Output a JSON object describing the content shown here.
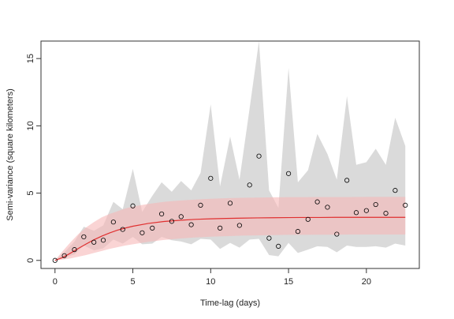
{
  "chart_data": {
    "type": "scatter",
    "title": "",
    "xlabel": "Time-lag (days)",
    "ylabel": "Semi-variance (square kilometers)",
    "xlim": [
      -0.9,
      23.4
    ],
    "ylim": [
      -0.6,
      16.3
    ],
    "xticks": [
      0,
      5,
      10,
      15,
      20
    ],
    "yticks": [
      0,
      5,
      10,
      15
    ],
    "grid": false,
    "colors": {
      "points": "#000000",
      "fit_line": "#e03030",
      "fit_band": "#f7b7b7",
      "empirical_band": "#d4d4d4"
    },
    "points": {
      "x": [
        0.0,
        0.6,
        1.25,
        1.85,
        2.5,
        3.1,
        3.75,
        4.35,
        5.0,
        5.6,
        6.25,
        6.85,
        7.5,
        8.1,
        8.75,
        9.35,
        10.0,
        10.6,
        11.25,
        11.85,
        12.5,
        13.1,
        13.75,
        14.35,
        15.0,
        15.6,
        16.25,
        16.85,
        17.5,
        18.1,
        18.75,
        19.35,
        20.0,
        20.6,
        21.25,
        21.85,
        22.5
      ],
      "y": [
        0.0,
        0.35,
        0.8,
        1.75,
        1.35,
        1.5,
        2.85,
        2.3,
        4.05,
        2.05,
        2.4,
        3.45,
        2.9,
        3.25,
        2.65,
        4.1,
        6.1,
        2.4,
        4.25,
        2.6,
        5.6,
        7.75,
        1.65,
        1.05,
        6.45,
        2.15,
        3.05,
        4.35,
        3.95,
        1.95,
        5.95,
        3.55,
        3.7,
        4.15,
        3.5,
        5.2,
        4.1
      ]
    },
    "fit_curve": {
      "sill": 3.2,
      "x": [
        0,
        0.5,
        1,
        1.5,
        2,
        2.5,
        3,
        3.5,
        4,
        4.5,
        5,
        6,
        7,
        8,
        9,
        10,
        11,
        12,
        13,
        14,
        15,
        16,
        17,
        18,
        19,
        20,
        21,
        22,
        22.5
      ],
      "y": [
        0,
        0.22,
        0.54,
        0.89,
        1.22,
        1.53,
        1.8,
        2.04,
        2.24,
        2.4,
        2.54,
        2.75,
        2.89,
        2.98,
        3.05,
        3.09,
        3.12,
        3.14,
        3.16,
        3.17,
        3.18,
        3.19,
        3.19,
        3.2,
        3.2,
        3.2,
        3.2,
        3.2,
        3.2
      ]
    },
    "fit_band": {
      "x": [
        0,
        0.5,
        1,
        1.5,
        2,
        2.5,
        3,
        3.5,
        4,
        4.5,
        5,
        6,
        7,
        8,
        9,
        10,
        11,
        12,
        13,
        14,
        15,
        16,
        17,
        18,
        19,
        20,
        21,
        22,
        22.5
      ],
      "lower": [
        0,
        0.06,
        0.15,
        0.27,
        0.4,
        0.55,
        0.7,
        0.85,
        0.98,
        1.1,
        1.2,
        1.38,
        1.52,
        1.62,
        1.7,
        1.76,
        1.8,
        1.84,
        1.86,
        1.88,
        1.9,
        1.9,
        1.91,
        1.91,
        1.92,
        1.92,
        1.92,
        1.92,
        1.92
      ],
      "upper": [
        0,
        0.7,
        1.35,
        1.95,
        2.45,
        2.85,
        3.2,
        3.45,
        3.65,
        3.85,
        4.0,
        4.2,
        4.35,
        4.45,
        4.52,
        4.58,
        4.62,
        4.65,
        4.67,
        4.69,
        4.7,
        4.7,
        4.71,
        4.71,
        4.71,
        4.72,
        4.72,
        4.72,
        4.72
      ]
    },
    "empirical_band": {
      "x": [
        0.0,
        0.6,
        1.25,
        1.85,
        2.5,
        3.1,
        3.75,
        4.35,
        5.0,
        5.6,
        6.25,
        6.85,
        7.5,
        8.1,
        8.75,
        9.35,
        10.0,
        10.6,
        11.25,
        11.85,
        12.5,
        13.1,
        13.75,
        14.35,
        15.0,
        15.6,
        16.25,
        16.85,
        17.5,
        18.1,
        18.75,
        19.35,
        20.0,
        20.6,
        21.25,
        21.85,
        22.5
      ],
      "lower": [
        0.0,
        0.2,
        0.45,
        1.1,
        0.75,
        0.9,
        1.55,
        1.25,
        1.75,
        1.2,
        1.25,
        1.75,
        1.5,
        1.4,
        1.2,
        1.6,
        1.55,
        0.85,
        1.3,
        0.95,
        1.55,
        1.6,
        0.4,
        0.3,
        1.3,
        0.55,
        0.8,
        1.05,
        1.0,
        0.6,
        1.1,
        1.0,
        1.0,
        1.05,
        0.95,
        1.25,
        1.1
      ],
      "upper": [
        0.0,
        0.6,
        1.4,
        2.5,
        2.2,
        2.6,
        4.35,
        3.8,
        6.8,
        3.6,
        4.8,
        5.8,
        5.1,
        5.9,
        5.2,
        6.5,
        11.6,
        5.5,
        9.2,
        6.0,
        11.3,
        16.3,
        5.2,
        3.9,
        14.3,
        5.8,
        6.7,
        9.4,
        7.9,
        6.0,
        12.2,
        7.1,
        7.3,
        8.3,
        7.1,
        10.6,
        8.5
      ]
    }
  }
}
